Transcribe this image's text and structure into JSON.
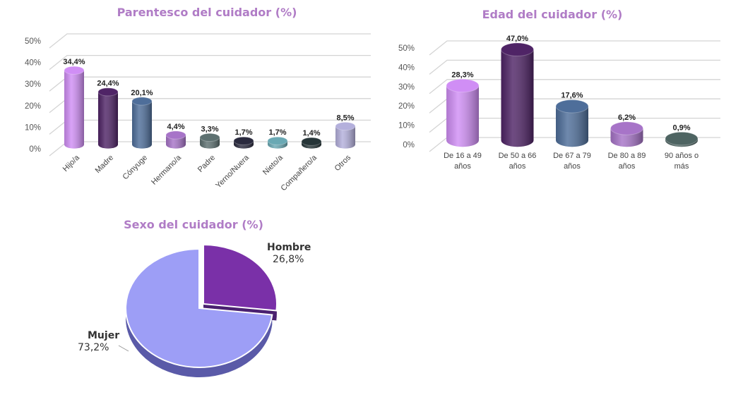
{
  "chart_data": [
    {
      "type": "bar",
      "title": "Parentesco del cuidador (%)",
      "categories": [
        "Hijo/a",
        "Madre",
        "Cónyuge",
        "Hermano/a",
        "Padre",
        "Yerno/Nuera",
        "Nieto/a",
        "Compañero/a",
        "Otros"
      ],
      "values": [
        34.4,
        24.4,
        20.1,
        4.4,
        3.3,
        1.7,
        1.7,
        1.4,
        8.5
      ],
      "data_labels": [
        "34,4%",
        "24,4%",
        "20,1%",
        "4,4%",
        "3,3%",
        "1,7%",
        "1,7%",
        "1,4%",
        "8,5%"
      ],
      "colors": [
        "#d08ef5",
        "#4f2466",
        "#4e6e9a",
        "#a774c8",
        "#5d7070",
        "#2a2a3e",
        "#6aa9b4",
        "#263538",
        "#b4b0dc"
      ],
      "yticks": [
        "0%",
        "10%",
        "20%",
        "30%",
        "40%",
        "50%"
      ],
      "ylim": [
        0,
        50
      ],
      "xlabel": "",
      "ylabel": "",
      "grid": true,
      "legend": "none"
    },
    {
      "type": "bar",
      "title": "Edad del cuidador (%)",
      "categories": [
        [
          "De 16 a 49",
          "años"
        ],
        [
          "De 50 a 66",
          "años"
        ],
        [
          "De 67 a 79",
          "años"
        ],
        [
          "De 80 a 89",
          "años"
        ],
        [
          "90 años o",
          "más"
        ]
      ],
      "values": [
        28.3,
        47.0,
        17.6,
        6.2,
        0.9
      ],
      "data_labels": [
        "28,3%",
        "47,0%",
        "17,6%",
        "6,2%",
        "0,9%"
      ],
      "colors": [
        "#d08ef5",
        "#4f2466",
        "#4e6e9a",
        "#a774c8",
        "#4e6462"
      ],
      "yticks": [
        "0%",
        "10%",
        "20%",
        "30%",
        "40%",
        "50%"
      ],
      "ylim": [
        0,
        50
      ],
      "xlabel": "",
      "ylabel": "",
      "grid": true,
      "legend": "none"
    },
    {
      "type": "pie",
      "title": "Sexo del cuidador (%)",
      "slices": [
        {
          "label": "Hombre",
          "value": 26.8,
          "text": "26,8%",
          "color": "#7a30a8"
        },
        {
          "label": "Mujer",
          "value": 73.2,
          "text": "73,2%",
          "color": "#9d9ef6"
        }
      ],
      "legend": "none"
    }
  ]
}
